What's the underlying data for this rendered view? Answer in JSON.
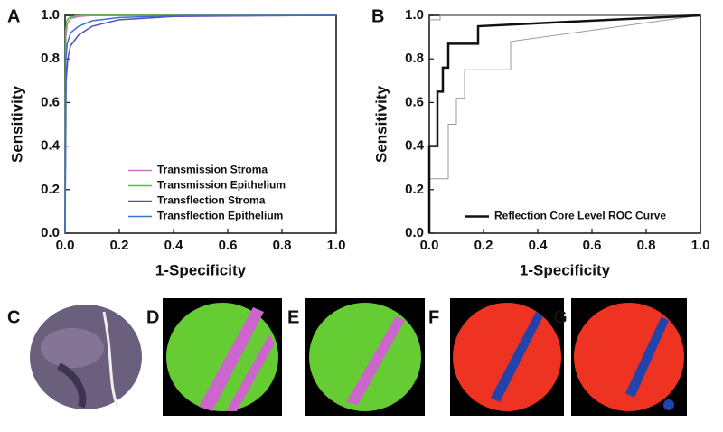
{
  "chart_data": [
    {
      "type": "line",
      "panel_label": "A",
      "xlabel": "1-Specificity",
      "ylabel": "Sensitivity",
      "xlim": [
        0,
        1
      ],
      "ylim": [
        0,
        1
      ],
      "xticks": [
        {
          "value": 0,
          "label": "0.0"
        },
        {
          "value": 0.2,
          "label": "0.2"
        },
        {
          "value": 0.4,
          "label": "0.4"
        },
        {
          "value": 0.6,
          "label": "0.6"
        },
        {
          "value": 0.8,
          "label": "0.8"
        },
        {
          "value": 1,
          "label": "1.0"
        }
      ],
      "yticks": [
        {
          "value": 0,
          "label": "0.0"
        },
        {
          "value": 0.2,
          "label": "0.2"
        },
        {
          "value": 0.4,
          "label": "0.4"
        },
        {
          "value": 0.6,
          "label": "0.6"
        },
        {
          "value": 0.8,
          "label": "0.8"
        },
        {
          "value": 1,
          "label": "1.0"
        }
      ],
      "legend": "lower right",
      "series": [
        {
          "name": "Transmission Stroma",
          "color": "#d070c8",
          "line_width": 1.5,
          "x": [
            0,
            0.003,
            0.008,
            0.02,
            0.05,
            0.1,
            1
          ],
          "y": [
            0,
            0.9,
            0.96,
            0.985,
            0.995,
            1,
            1
          ]
        },
        {
          "name": "Transmission Epithelium",
          "color": "#50c040",
          "line_width": 1.5,
          "x": [
            0,
            0.002,
            0.006,
            0.015,
            0.04,
            0.08,
            1
          ],
          "y": [
            0,
            0.93,
            0.975,
            0.99,
            0.998,
            1,
            1
          ]
        },
        {
          "name": "Transflection Stroma",
          "color": "#5a48b8",
          "line_width": 1.5,
          "x": [
            0,
            0.004,
            0.01,
            0.02,
            0.05,
            0.1,
            0.2,
            0.4,
            1
          ],
          "y": [
            0,
            0.7,
            0.8,
            0.86,
            0.91,
            0.95,
            0.98,
            0.995,
            1
          ]
        },
        {
          "name": "Transflection Epithelium",
          "color": "#3a70d0",
          "line_width": 1.5,
          "x": [
            0,
            0.003,
            0.008,
            0.02,
            0.05,
            0.1,
            0.2,
            0.4,
            1
          ],
          "y": [
            0,
            0.8,
            0.87,
            0.92,
            0.95,
            0.975,
            0.99,
            0.998,
            1
          ]
        }
      ]
    },
    {
      "type": "line",
      "panel_label": "B",
      "xlabel": "1-Specificity",
      "ylabel": "Sensitivity",
      "xlim": [
        0,
        1
      ],
      "ylim": [
        0,
        1
      ],
      "xticks": [
        {
          "value": 0,
          "label": "0.0"
        },
        {
          "value": 0.2,
          "label": "0.2"
        },
        {
          "value": 0.4,
          "label": "0.4"
        },
        {
          "value": 0.6,
          "label": "0.6"
        },
        {
          "value": 0.8,
          "label": "0.8"
        },
        {
          "value": 1,
          "label": "1.0"
        }
      ],
      "yticks": [
        {
          "value": 0,
          "label": "0.0"
        },
        {
          "value": 0.2,
          "label": "0.2"
        },
        {
          "value": 0.4,
          "label": "0.4"
        },
        {
          "value": 0.6,
          "label": "0.6"
        },
        {
          "value": 0.8,
          "label": "0.8"
        },
        {
          "value": 1,
          "label": "1.0"
        }
      ],
      "legend": "lower right",
      "series": [
        {
          "color": "#999999",
          "line_width": 1,
          "x": [
            0,
            0,
            0.07,
            0.07,
            0.1,
            0.1,
            0.13,
            0.13,
            0.3,
            0.3,
            1
          ],
          "y": [
            0,
            0.25,
            0.25,
            0.5,
            0.5,
            0.62,
            0.62,
            0.75,
            0.75,
            0.88,
            1
          ]
        },
        {
          "color": "#999999",
          "line_width": 1,
          "x": [
            0,
            0.04,
            0.04,
            1
          ],
          "y": [
            0.98,
            0.98,
            1,
            1
          ]
        },
        {
          "name": "Reflection Core Level ROC Curve",
          "color": "#111111",
          "line_width": 2.5,
          "x": [
            0,
            0,
            0.03,
            0.03,
            0.05,
            0.05,
            0.07,
            0.07,
            0.18,
            0.18,
            1
          ],
          "y": [
            0,
            0.4,
            0.4,
            0.65,
            0.65,
            0.76,
            0.76,
            0.87,
            0.87,
            0.95,
            1
          ]
        }
      ]
    }
  ],
  "panels": [
    {
      "label": "C"
    },
    {
      "label": "D"
    },
    {
      "label": "E"
    },
    {
      "label": "F"
    },
    {
      "label": "G"
    }
  ]
}
